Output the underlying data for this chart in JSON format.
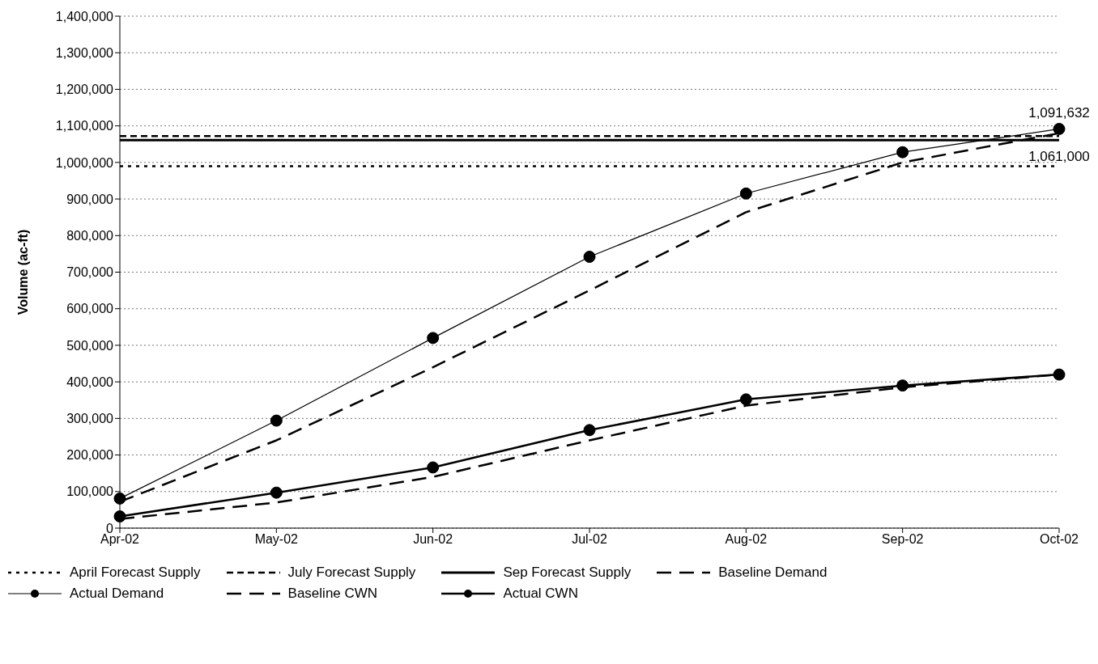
{
  "chart_data": {
    "type": "line",
    "ylabel": "Volume (ac-ft)",
    "categories": [
      "Apr-02",
      "May-02",
      "Jun-02",
      "Jul-02",
      "Aug-02",
      "Sep-02",
      "Oct-02"
    ],
    "series": [
      {
        "name": "April Forecast Supply",
        "color": "#000000",
        "line_style": "dotted",
        "marker": "none",
        "values": [
          990000,
          990000,
          990000,
          990000,
          990000,
          990000,
          990000
        ]
      },
      {
        "name": "July Forecast Supply",
        "color": "#000000",
        "line_style": "dashed",
        "marker": "none",
        "values": [
          1072000,
          1072000,
          1072000,
          1072000,
          1072000,
          1072000,
          1072000
        ]
      },
      {
        "name": "Sep Forecast Supply",
        "color": "#000000",
        "line_style": "solid",
        "marker": "none",
        "values": [
          1061000,
          1061000,
          1061000,
          1061000,
          1061000,
          1061000,
          1061000
        ]
      },
      {
        "name": "Baseline Demand",
        "color": "#000000",
        "line_style": "dashed",
        "marker": "none",
        "values": [
          72000,
          240000,
          440000,
          650000,
          864000,
          1000000,
          1080000
        ]
      },
      {
        "name": "Actual Demand",
        "color": "#000000",
        "line_style": "solid",
        "marker": "circle",
        "values": [
          81000,
          294000,
          520000,
          742000,
          915000,
          1028000,
          1091632
        ]
      },
      {
        "name": "Baseline CWN",
        "color": "#000000",
        "line_style": "dashed",
        "marker": "none",
        "values": [
          25000,
          70000,
          140000,
          240000,
          335000,
          385000,
          420000
        ]
      },
      {
        "name": "Actual CWN",
        "color": "#000000",
        "line_style": "solid",
        "marker": "circle",
        "values": [
          32000,
          97000,
          166000,
          268000,
          352000,
          390000,
          420000
        ]
      }
    ],
    "ylim": [
      0,
      1400000
    ],
    "yticks": [
      {
        "value": 0,
        "label": "0"
      },
      {
        "value": 100000,
        "label": "100,000"
      },
      {
        "value": 200000,
        "label": "200,000"
      },
      {
        "value": 300000,
        "label": "300,000"
      },
      {
        "value": 400000,
        "label": "400,000"
      },
      {
        "value": 500000,
        "label": "500,000"
      },
      {
        "value": 600000,
        "label": "600,000"
      },
      {
        "value": 700000,
        "label": "700,000"
      },
      {
        "value": 800000,
        "label": "800,000"
      },
      {
        "value": 900000,
        "label": "900,000"
      },
      {
        "value": 1000000,
        "label": "1,000,000"
      },
      {
        "value": 1100000,
        "label": "1,100,000"
      },
      {
        "value": 1200000,
        "label": "1,200,000"
      },
      {
        "value": 1300000,
        "label": "1,300,000"
      },
      {
        "value": 1400000,
        "label": "1,400,000"
      }
    ],
    "grid": "y",
    "legend": "bottom",
    "annotations": [
      {
        "text": "1,091,632",
        "x": "Oct-02",
        "y": 1091632
      },
      {
        "text": "1,061,000",
        "x": "Oct-02",
        "y": 1061000
      }
    ]
  }
}
